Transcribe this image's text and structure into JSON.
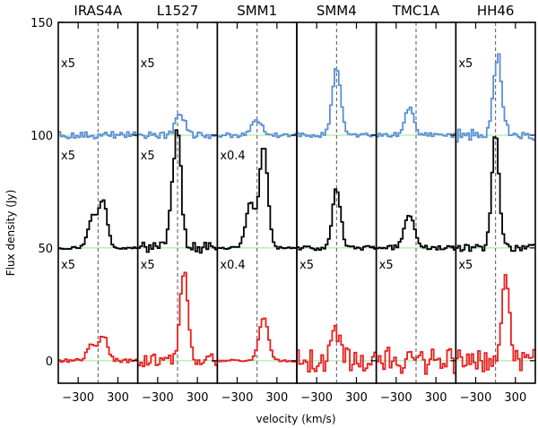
{
  "chart_data": {
    "type": "line",
    "ylabel": "Flux density (Jy)",
    "xlabel": "velocity (km/s)",
    "ylim": [
      -10,
      150
    ],
    "xlim": [
      -600,
      600
    ],
    "y_ticks": [
      0,
      50,
      100,
      150
    ],
    "x_ticks": [
      -300,
      300
    ],
    "x_tick_labels": [
      "−300",
      "300"
    ],
    "baselines": [
      0,
      50,
      100
    ],
    "colors": {
      "top": "#5b8fd6",
      "middle": "#000000",
      "bottom": "#e82020",
      "baseline": "#90ee90",
      "dashed": "#555555"
    },
    "panels": [
      {
        "title": "IRAS4A",
        "multipliers": {
          "top": "x5",
          "middle": "x5",
          "bottom": "x5"
        },
        "series": [
          {
            "offset": 100,
            "noise": 1.5,
            "noise_amp": 1.5,
            "peaks": [
              [
                0,
                30,
                0
              ]
            ]
          },
          {
            "offset": 50,
            "noise": 0.5,
            "noise_amp": 0.5,
            "peaks": [
              [
                80,
                20,
                100
              ],
              [
                -80,
                14,
                110
              ]
            ]
          },
          {
            "offset": 0,
            "noise": 0.8,
            "noise_amp": 0.8,
            "peaks": [
              [
                80,
                11,
                110
              ],
              [
                -100,
                7,
                100
              ]
            ]
          }
        ]
      },
      {
        "title": "L1527",
        "multipliers": {
          "top": "x5",
          "middle": "x5",
          "bottom": "x5"
        },
        "series": [
          {
            "offset": 100,
            "noise": 1.5,
            "noise_amp": 1.5,
            "peaks": [
              [
                40,
                10,
                110
              ]
            ]
          },
          {
            "offset": 50,
            "noise": 2.5,
            "noise_amp": 2.5,
            "peaks": [
              [
                0,
                50,
                90
              ],
              [
                -100,
                12,
                90
              ]
            ]
          },
          {
            "offset": 0,
            "noise": 3,
            "noise_amp": 3,
            "peaks": [
              [
                100,
                40,
                100
              ]
            ]
          }
        ]
      },
      {
        "title": "SMM1",
        "multipliers": {
          "top": "",
          "middle": "x0.4",
          "bottom": "x0.4"
        },
        "series": [
          {
            "offset": 100,
            "noise": 1,
            "noise_amp": 1,
            "peaks": [
              [
                0,
                7,
                120
              ]
            ]
          },
          {
            "offset": 50,
            "noise": 0.5,
            "noise_amp": 0.5,
            "peaks": [
              [
                100,
                45,
                100
              ],
              [
                -100,
                20,
                110
              ]
            ]
          },
          {
            "offset": 0,
            "noise": 0.5,
            "noise_amp": 0.5,
            "peaks": [
              [
                100,
                19,
                110
              ]
            ]
          }
        ]
      },
      {
        "title": "SMM4",
        "multipliers": {
          "top": "",
          "middle": "",
          "bottom": "x5"
        },
        "series": [
          {
            "offset": 100,
            "noise": 1,
            "noise_amp": 1,
            "peaks": [
              [
                0,
                30,
                100
              ]
            ]
          },
          {
            "offset": 50,
            "noise": 1,
            "noise_amp": 1,
            "peaks": [
              [
                0,
                26,
                100
              ]
            ]
          },
          {
            "offset": 0,
            "noise": 5,
            "noise_amp": 5,
            "peaks": [
              [
                0,
                12,
                100
              ]
            ]
          }
        ]
      },
      {
        "title": "TMC1A",
        "multipliers": {
          "top": "",
          "middle": "",
          "bottom": "x5"
        },
        "series": [
          {
            "offset": 100,
            "noise": 1,
            "noise_amp": 1,
            "peaks": [
              [
                -100,
                12,
                110
              ]
            ]
          },
          {
            "offset": 50,
            "noise": 1,
            "noise_amp": 1,
            "peaks": [
              [
                -100,
                15,
                120
              ]
            ]
          },
          {
            "offset": 0,
            "noise": 6,
            "noise_amp": 6,
            "peaks": []
          }
        ]
      },
      {
        "title": "HH46",
        "multipliers": {
          "top": "x5",
          "middle": "",
          "bottom": "x5"
        },
        "series": [
          {
            "offset": 100,
            "noise": 3,
            "noise_amp": 3,
            "peaks": [
              [
                30,
                36,
                100
              ]
            ]
          },
          {
            "offset": 50,
            "noise": 1.5,
            "noise_amp": 1.5,
            "peaks": [
              [
                0,
                50,
                90
              ]
            ]
          },
          {
            "offset": 0,
            "noise": 5,
            "noise_amp": 5,
            "peaks": [
              [
                150,
                37,
                100
              ]
            ]
          }
        ]
      }
    ]
  }
}
